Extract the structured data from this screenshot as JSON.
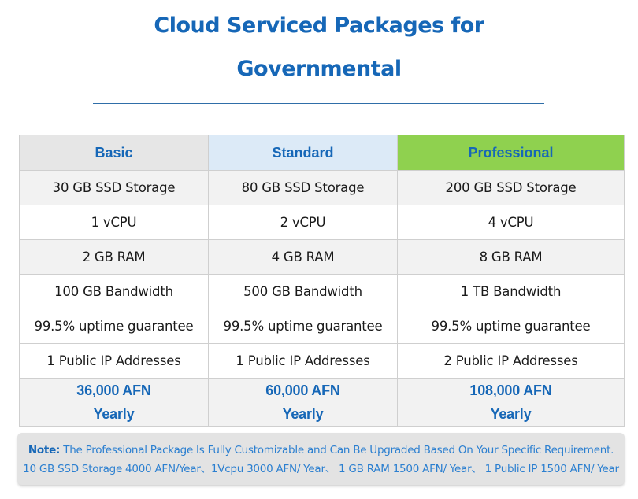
{
  "header": {
    "title_line1": "Cloud Serviced Packages for",
    "title_line2": "Governmental"
  },
  "table": {
    "columns": [
      "Basic",
      "Standard",
      "Professional"
    ],
    "rows": [
      [
        "30 GB SSD Storage",
        "80 GB SSD Storage",
        "200 GB SSD Storage"
      ],
      [
        "1 vCPU",
        "2 vCPU",
        "4 vCPU"
      ],
      [
        "2 GB RAM",
        "4 GB RAM",
        "8 GB RAM"
      ],
      [
        "100 GB Bandwidth",
        "500 GB Bandwidth",
        "1 TB Bandwidth"
      ],
      [
        "99.5% uptime guarantee",
        "99.5% uptime guarantee",
        "99.5% uptime guarantee"
      ],
      [
        "1 Public IP Addresses",
        "1 Public IP Addresses",
        "2 Public IP Addresses"
      ]
    ],
    "prices": [
      {
        "amount": "36,000 AFN",
        "period": "Yearly"
      },
      {
        "amount": "60,000 AFN",
        "period": "Yearly"
      },
      {
        "amount": "108,000 AFN",
        "period": "Yearly"
      }
    ]
  },
  "note": {
    "label": "Note:",
    "text": " The Professional Package Is Fully Customizable and Can Be Upgraded Based On Your Specific Requirement.",
    "line2": "10 GB SSD Storage 4000 AFN/Year、1Vcpu 3000 AFN/ Year、 1 GB RAM 1500 AFN/ Year、 1 Public IP 1500 AFN/ Year"
  },
  "colors": {
    "title": "#1667b7",
    "basic_header": "#e6e6e6",
    "standard_header": "#dceaf7",
    "professional_header": "#8fd14f",
    "note_text": "#2b7fd0"
  }
}
